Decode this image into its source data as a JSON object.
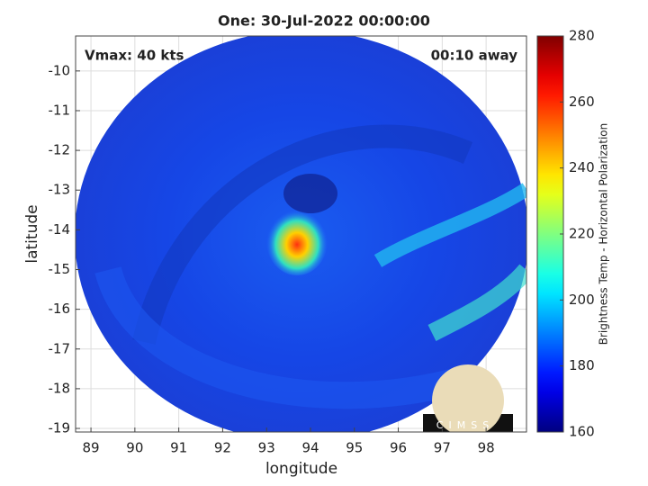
{
  "chart_data": {
    "type": "heatmap",
    "title": "One: 30-Jul-2022 00:00:00",
    "xlabel": "longitude",
    "ylabel": "latitude",
    "annotations": [
      "Vmax: 40 kts",
      "00:10 away"
    ],
    "xlim": [
      88.65,
      98.92
    ],
    "xticks": [
      89,
      90,
      91,
      92,
      93,
      94,
      95,
      96,
      97,
      98
    ],
    "ylim": [
      -19.09,
      -9.12
    ],
    "yticks": [
      -10,
      -11,
      -12,
      -13,
      -14,
      -15,
      -16,
      -17,
      -18,
      -19
    ],
    "grid": true,
    "colorbar": {
      "label": "Brightness Temp - Horizontal Polarization",
      "colormap": "jet",
      "clim": [
        160,
        280
      ],
      "ticks": [
        160,
        180,
        200,
        220,
        240,
        260,
        280
      ]
    },
    "logo": "CIMSS"
  }
}
